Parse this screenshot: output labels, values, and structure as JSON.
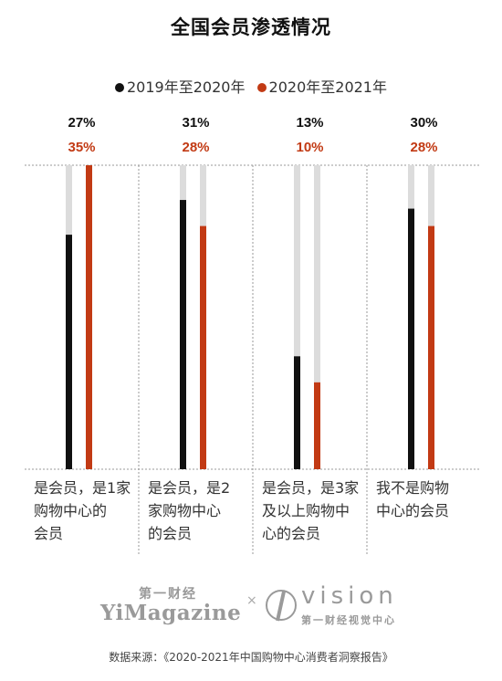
{
  "chart_data": {
    "type": "bar",
    "title": "全国会员渗透情况",
    "legend_position": "top-center",
    "categories": [
      "是会员，是1家购物中心的会员",
      "是会员，是2家购物中心的会员",
      "是会员，是3家及以上购物中心的会员",
      "我不是购物中心的会员"
    ],
    "series": [
      {
        "name": "2019年至2020年",
        "color": "#111111",
        "values": [
          27,
          31,
          13,
          30
        ]
      },
      {
        "name": "2020年至2021年",
        "color": "#c23a14",
        "values": [
          35,
          28,
          10,
          28
        ]
      }
    ],
    "value_labels": [
      [
        "27%",
        "31%",
        "13%",
        "30%"
      ],
      [
        "35%",
        "28%",
        "10%",
        "28%"
      ]
    ],
    "ylim": [
      0,
      35
    ],
    "track_color": "#dcdcdc",
    "grid": true
  },
  "category_lines": [
    [
      "是会员，是1家",
      "购物中心的",
      "会员"
    ],
    [
      "是会员，是2",
      "家购物中心",
      "的会员"
    ],
    [
      "是会员，是3家",
      "及以上购物中",
      "心的会员"
    ],
    [
      "我不是购物",
      "中心的会员"
    ]
  ],
  "branding": {
    "yicai_cn": "第一财经",
    "yicai_en": "YiMagazine",
    "separator": "×",
    "vision_en": "vision",
    "vision_cn": "第一财经视觉中心"
  },
  "source": "数据来源：《2020-2021年中国购物中心消费者洞察报告》"
}
